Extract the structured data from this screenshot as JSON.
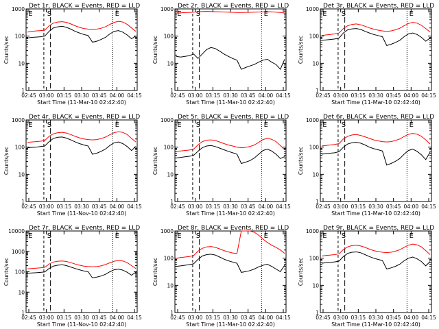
{
  "chart_data": [
    {
      "type": "line",
      "title": "Det 1r, BLACK = Events, RED = LLD",
      "ylabel": "Counts/sec",
      "xlabel": "Start Time (11-Mar-10 02:42:40)",
      "x_ticks": [
        "02:45",
        "03:00",
        "03:15",
        "03:30",
        "03:45",
        "04:00",
        "04:15"
      ],
      "y_ticks": [
        "1",
        "10",
        "100",
        "1000"
      ],
      "yscale": "log",
      "ylim": [
        1,
        1000
      ],
      "markers": [
        "E",
        "S",
        "E"
      ],
      "series": [
        {
          "color": "#ff0000",
          "values": [
            140,
            150,
            155,
            160,
            165,
            240,
            300,
            330,
            340,
            320,
            280,
            240,
            210,
            190,
            180,
            175,
            180,
            195,
            220,
            270,
            320,
            350,
            330,
            270,
            200,
            150
          ]
        },
        {
          "color": "#000000",
          "values": [
            85,
            90,
            92,
            95,
            100,
            150,
            200,
            220,
            230,
            210,
            180,
            150,
            130,
            115,
            105,
            60,
            65,
            75,
            90,
            120,
            150,
            160,
            140,
            110,
            80,
            100
          ]
        }
      ]
    },
    {
      "type": "line",
      "title": "Det 2r, BLACK = Events, RED = LLD",
      "ylabel": "Counts/sec",
      "xlabel": "Start Time (11-Mar-10 02:42:40)",
      "x_ticks": [
        "02:45",
        "03:00",
        "03:15",
        "03:30",
        "03:45",
        "04:00",
        "04:15"
      ],
      "y_ticks": [
        "1",
        "10",
        "100",
        "1000"
      ],
      "yscale": "log",
      "ylim": [
        1,
        1000
      ],
      "markers": [
        "E",
        "S",
        "E"
      ],
      "series": [
        {
          "color": "#ff0000",
          "values": [
            700,
            720,
            730,
            740,
            760,
            780,
            800,
            810,
            800,
            790,
            780,
            770,
            760,
            750,
            740,
            740,
            745,
            750,
            760,
            770,
            780,
            790,
            780,
            760,
            740,
            700
          ]
        },
        {
          "color": "#000000",
          "values": [
            18,
            17,
            18,
            19,
            22,
            15,
            22,
            32,
            38,
            35,
            28,
            22,
            18,
            15,
            13,
            6,
            7,
            8,
            9,
            11,
            13,
            14,
            11,
            9,
            6,
            14
          ]
        }
      ]
    },
    {
      "type": "line",
      "title": "Det 3r, BLACK = Events, RED = LLD",
      "ylabel": "Counts/sec",
      "xlabel": "Start Time (11-Mar-10 02:42:40)",
      "x_ticks": [
        "02:45",
        "03:00",
        "03:15",
        "03:30",
        "03:45",
        "04:00",
        "04:15"
      ],
      "y_ticks": [
        "1",
        "10",
        "100",
        "1000"
      ],
      "yscale": "log",
      "ylim": [
        1,
        1000
      ],
      "markers": [
        "E",
        "S",
        "E"
      ],
      "series": [
        {
          "color": "#ff0000",
          "values": [
            105,
            110,
            115,
            120,
            130,
            190,
            240,
            270,
            280,
            260,
            230,
            200,
            180,
            165,
            155,
            150,
            155,
            170,
            195,
            240,
            290,
            320,
            300,
            250,
            190,
            140
          ]
        },
        {
          "color": "#000000",
          "values": [
            70,
            72,
            75,
            78,
            85,
            130,
            170,
            185,
            190,
            175,
            150,
            130,
            115,
            105,
            95,
            45,
            50,
            58,
            70,
            95,
            120,
            130,
            115,
            90,
            65,
            85
          ]
        }
      ]
    },
    {
      "type": "line",
      "title": "Det 4r, BLACK = Events, RED = LLD",
      "ylabel": "Counts/sec",
      "xlabel": "Start Time (11-Nov-10 02:42:40)",
      "x_ticks": [
        "02:45",
        "03:00",
        "03:15",
        "03:30",
        "03:45",
        "04:00",
        "04:15"
      ],
      "y_ticks": [
        "1",
        "10",
        "100",
        "1000"
      ],
      "yscale": "log",
      "ylim": [
        1,
        1000
      ],
      "markers": [
        "E",
        "S",
        "E"
      ],
      "series": [
        {
          "color": "#ff0000",
          "values": [
            150,
            155,
            160,
            165,
            175,
            250,
            310,
            340,
            350,
            330,
            290,
            250,
            220,
            200,
            190,
            185,
            190,
            205,
            235,
            285,
            340,
            370,
            350,
            290,
            210,
            155
          ]
        },
        {
          "color": "#000000",
          "values": [
            95,
            98,
            100,
            105,
            110,
            160,
            210,
            230,
            235,
            215,
            185,
            155,
            135,
            120,
            110,
            55,
            60,
            70,
            85,
            115,
            145,
            155,
            135,
            105,
            75,
            105
          ]
        }
      ]
    },
    {
      "type": "line",
      "title": "Det 5r, BLACK = Events, RED = LLD",
      "ylabel": "Counts/sec",
      "xlabel": "Start Time (11-Mar-10 02:42:40)",
      "x_ticks": [
        "02:45",
        "03:00",
        "03:15",
        "03:30",
        "03:45",
        "04:00",
        "04:15"
      ],
      "y_ticks": [
        "1",
        "10",
        "100",
        "1000"
      ],
      "yscale": "log",
      "ylim": [
        1,
        1000
      ],
      "markers": [
        "E",
        "S",
        "E"
      ],
      "series": [
        {
          "color": "#ff0000",
          "values": [
            70,
            72,
            75,
            78,
            85,
            120,
            160,
            180,
            185,
            175,
            155,
            135,
            120,
            110,
            100,
            95,
            98,
            105,
            120,
            150,
            190,
            210,
            195,
            160,
            115,
            80
          ]
        },
        {
          "color": "#000000",
          "values": [
            40,
            42,
            44,
            46,
            50,
            70,
            95,
            110,
            115,
            105,
            92,
            80,
            70,
            62,
            55,
            25,
            28,
            32,
            40,
            55,
            75,
            85,
            72,
            55,
            38,
            45
          ]
        }
      ]
    },
    {
      "type": "line",
      "title": "Det 6r, BLACK = Events, RED = LLD",
      "ylabel": "Counts/sec",
      "xlabel": "Start Time (11-Mar-10 02:42:40)",
      "x_ticks": [
        "02:45",
        "03:00",
        "03:15",
        "03:30",
        "03:45",
        "04:00",
        "04:15"
      ],
      "y_ticks": [
        "1",
        "10",
        "100",
        "1000"
      ],
      "yscale": "log",
      "ylim": [
        1,
        1000
      ],
      "markers": [
        "E",
        "S",
        "E"
      ],
      "series": [
        {
          "color": "#ff0000",
          "values": [
            110,
            115,
            120,
            125,
            135,
            200,
            250,
            280,
            290,
            270,
            240,
            210,
            185,
            170,
            160,
            155,
            160,
            175,
            200,
            245,
            295,
            320,
            300,
            250,
            185,
            130
          ]
        },
        {
          "color": "#000000",
          "values": [
            55,
            58,
            60,
            62,
            68,
            100,
            130,
            145,
            150,
            140,
            120,
            100,
            88,
            80,
            72,
            22,
            25,
            30,
            38,
            55,
            75,
            85,
            70,
            52,
            35,
            65
          ]
        }
      ]
    },
    {
      "type": "line",
      "title": "Det 7r, BLACK = Events, RED = LLD",
      "ylabel": "Counts/sec",
      "xlabel": "Start Time (11-Nov-10 02:42:40)",
      "x_ticks": [
        "02:45",
        "03:00",
        "03:15",
        "03:30",
        "03:45",
        "04:00",
        "04:15"
      ],
      "y_ticks": [
        "1",
        "10",
        "100",
        "1000",
        "10000"
      ],
      "yscale": "log",
      "ylim": [
        1,
        10000
      ],
      "markers": [
        "E",
        "S",
        "E"
      ],
      "series": [
        {
          "color": "#ff0000",
          "values": [
            140,
            145,
            150,
            155,
            165,
            240,
            300,
            330,
            340,
            320,
            280,
            240,
            210,
            190,
            180,
            175,
            180,
            195,
            225,
            275,
            330,
            360,
            340,
            280,
            200,
            145
          ]
        },
        {
          "color": "#000000",
          "values": [
            85,
            88,
            90,
            93,
            98,
            145,
            190,
            210,
            220,
            200,
            170,
            145,
            125,
            110,
            100,
            50,
            55,
            62,
            75,
            100,
            125,
            135,
            120,
            95,
            68,
            95
          ]
        }
      ]
    },
    {
      "type": "line",
      "title": "Det 8r, BLACK = Events, RED = LLD",
      "ylabel": "Counts/sec",
      "xlabel": "Start Time (11-Mar-10 02:42:40)",
      "x_ticks": [
        "02:45",
        "03:00",
        "03:15",
        "03:30",
        "03:45",
        "04:00",
        "04:15"
      ],
      "y_ticks": [
        "1",
        "10",
        "100",
        "1000"
      ],
      "yscale": "log",
      "ylim": [
        1,
        1000
      ],
      "markers": [
        "E",
        "S",
        "E"
      ],
      "series": [
        {
          "color": "#ff0000",
          "values": [
            100,
            105,
            110,
            115,
            125,
            180,
            230,
            260,
            270,
            250,
            220,
            190,
            170,
            155,
            150,
            1000,
            1000,
            1000,
            900,
            700,
            500,
            380,
            300,
            250,
            200,
            150
          ]
        },
        {
          "color": "#000000",
          "values": [
            50,
            52,
            55,
            58,
            62,
            90,
            120,
            135,
            140,
            130,
            110,
            92,
            80,
            72,
            65,
            30,
            32,
            35,
            40,
            48,
            55,
            60,
            50,
            40,
            32,
            55
          ]
        }
      ]
    },
    {
      "type": "line",
      "title": "Det 9r, BLACK = Events, RED = LLD",
      "ylabel": "Counts/sec",
      "xlabel": "Start Time (11-Mar-10 02:42:40)",
      "x_ticks": [
        "02:45",
        "03:00",
        "03:15",
        "03:30",
        "03:45",
        "04:00",
        "04:15"
      ],
      "y_ticks": [
        "1",
        "10",
        "100",
        "1000"
      ],
      "yscale": "log",
      "ylim": [
        1,
        1000
      ],
      "markers": [
        "E",
        "S",
        "E"
      ],
      "series": [
        {
          "color": "#ff0000",
          "values": [
            120,
            125,
            130,
            135,
            145,
            210,
            260,
            290,
            300,
            280,
            250,
            215,
            190,
            175,
            165,
            160,
            165,
            180,
            205,
            250,
            300,
            330,
            310,
            260,
            190,
            135
          ]
        },
        {
          "color": "#000000",
          "values": [
            65,
            68,
            70,
            73,
            78,
            115,
            150,
            165,
            170,
            158,
            135,
            115,
            100,
            90,
            82,
            40,
            44,
            50,
            60,
            80,
            100,
            110,
            95,
            75,
            52,
            75
          ]
        }
      ]
    }
  ]
}
